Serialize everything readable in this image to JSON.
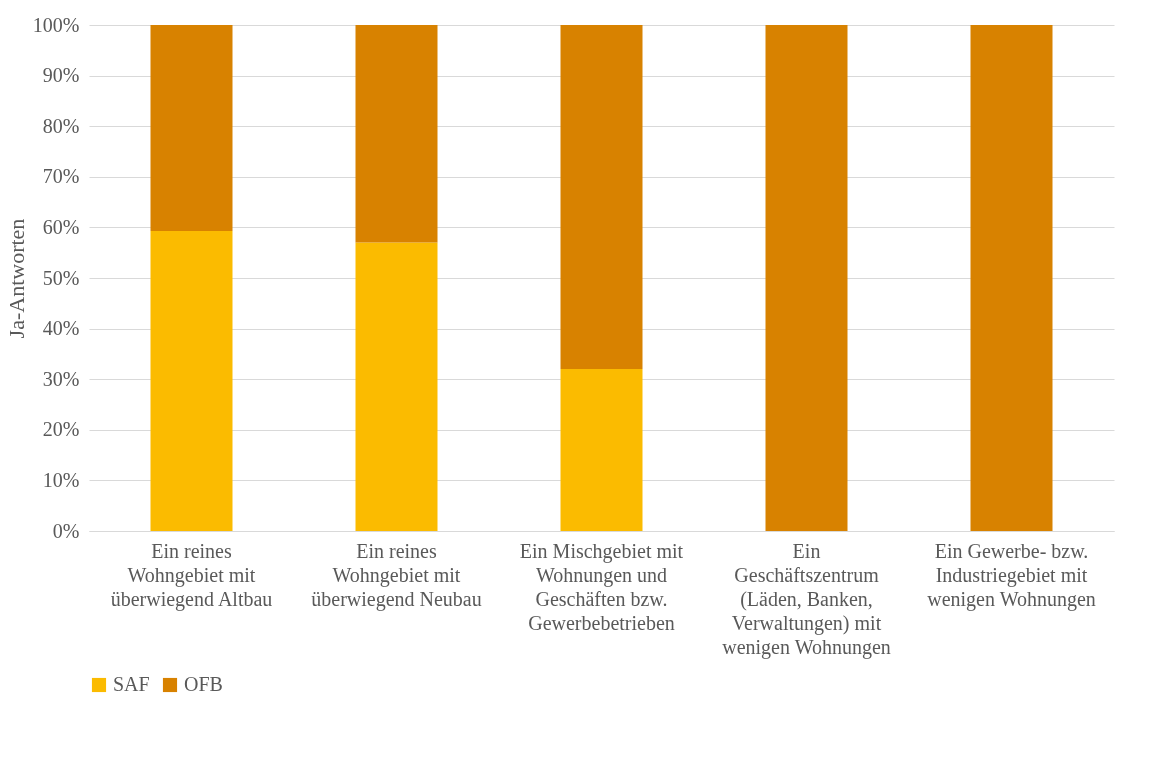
{
  "chart_data": {
    "type": "bar",
    "stacked": true,
    "ylabel": "Ja-Antworten",
    "categories": [
      "Ein reines Wohngebiet mit überwiegend Altbau",
      "Ein reines Wohngebiet mit überwiegend Neubau",
      "Ein Mischgebiet mit Wohnungen und Geschäften bzw. Gewerbebetrieben",
      "Ein Geschäftszentrum (Läden, Banken, Verwaltungen) mit wenigen Wohnungen",
      "Ein Gewerbe- bzw. Industriegebiet mit wenigen Wohnungen"
    ],
    "series": [
      {
        "name": "SAF",
        "color": "#fbbb00",
        "values": [
          59.3,
          57,
          32,
          0,
          0
        ]
      },
      {
        "name": "OFB",
        "color": "#d88200",
        "values": [
          40.7,
          43,
          68,
          100,
          100
        ]
      }
    ],
    "ylim": [
      0,
      100
    ],
    "yticks": [
      {
        "value": 0,
        "label": "0%"
      },
      {
        "value": 10,
        "label": "10%"
      },
      {
        "value": 20,
        "label": "20%"
      },
      {
        "value": 30,
        "label": "30%"
      },
      {
        "value": 40,
        "label": "40%"
      },
      {
        "value": 50,
        "label": "50%"
      },
      {
        "value": 60,
        "label": "60%"
      },
      {
        "value": 70,
        "label": "70%"
      },
      {
        "value": 80,
        "label": "80%"
      },
      {
        "value": 90,
        "label": "90%"
      },
      {
        "value": 100,
        "label": "100%"
      }
    ],
    "grid": "y",
    "legend": "bottom"
  }
}
